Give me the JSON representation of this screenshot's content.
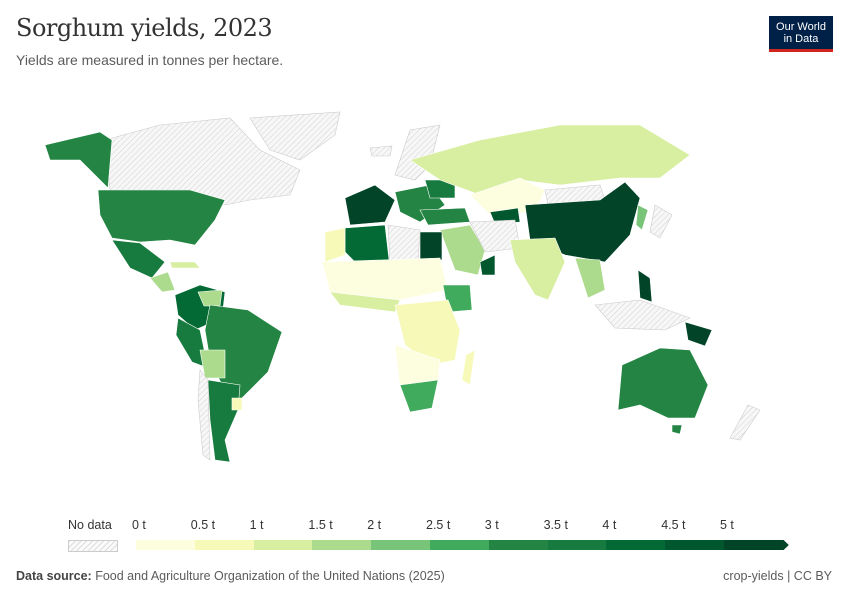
{
  "header": {
    "title": "Sorghum yields, 2023",
    "subtitle": "Yields are measured in tonnes per hectare.",
    "logo": "Our World in Data"
  },
  "legend": {
    "no_data_label": "No data",
    "ticks": [
      "0 t",
      "0.5 t",
      "1 t",
      "1.5 t",
      "2 t",
      "2.5 t",
      "3 t",
      "3.5 t",
      "4 t",
      "4.5 t",
      "5 t"
    ],
    "bins": [
      0,
      0.5,
      1,
      1.5,
      2,
      2.5,
      3,
      3.5,
      4,
      4.5,
      5
    ],
    "colors": [
      "#fdfde0",
      "#f6f9b8",
      "#d8eea0",
      "#acdb8e",
      "#78c57a",
      "#41ab5d",
      "#238443",
      "#177a3e",
      "#036a35",
      "#01582e",
      "#014428"
    ],
    "no_data_color": "#e8e8e8"
  },
  "footer": {
    "source_label": "Data source:",
    "source": "Food and Agriculture Organization of the United Nations (2025)",
    "slug": "crop-yields | CC BY"
  }
}
